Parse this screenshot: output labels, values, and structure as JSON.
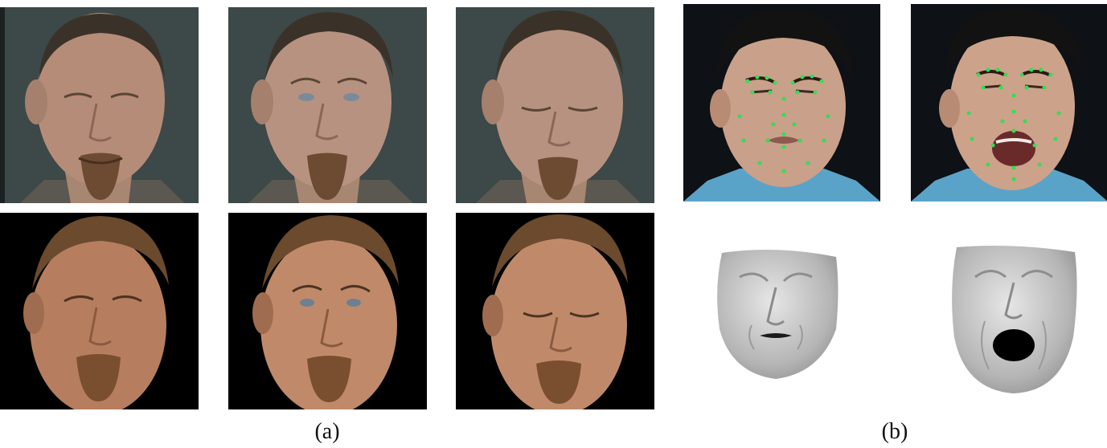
{
  "figure": {
    "captions": {
      "a": "(a)",
      "b": "(b)"
    },
    "panel_a": {
      "rows": [
        {
          "kind": "video-frame",
          "background": "#3d4848",
          "expressions": [
            "smile",
            "brow-raise",
            "eyes-closed"
          ]
        },
        {
          "kind": "rendered-3d-head",
          "background": "#000000",
          "expressions": [
            "smile",
            "brow-raise",
            "eyes-closed"
          ]
        }
      ]
    },
    "panel_b": {
      "top_row": {
        "kind": "photo-with-landmarks",
        "background": "#0e1116",
        "landmark_color": "#33dd55",
        "expressions": [
          "disgust",
          "scream"
        ]
      },
      "bottom_row": {
        "kind": "grey-3d-mesh",
        "background": "#ffffff",
        "mesh_color": "#bdbdbd",
        "expressions": [
          "disgust",
          "scream"
        ]
      }
    }
  }
}
